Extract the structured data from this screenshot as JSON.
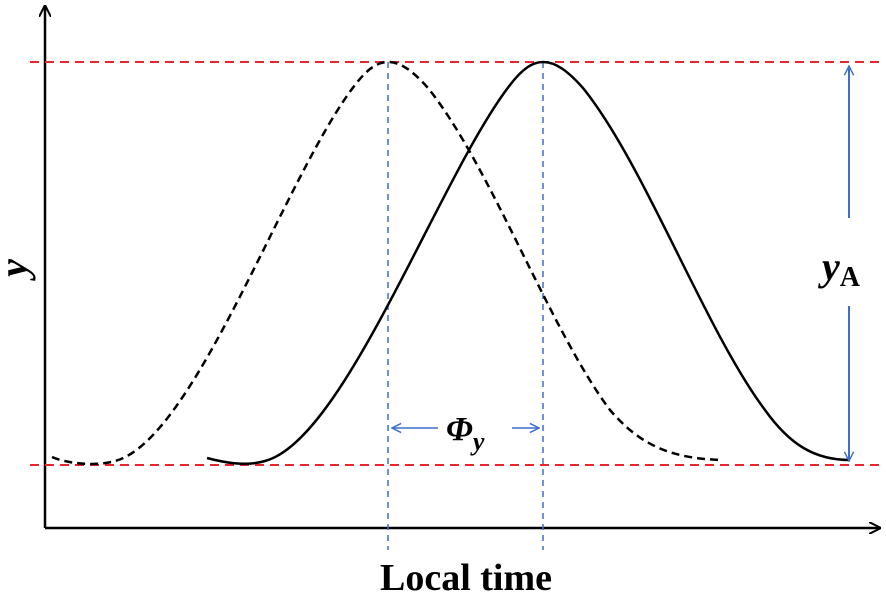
{
  "labels": {
    "x_axis": "Local time",
    "y_axis": "y",
    "amplitude_main": "y",
    "amplitude_sub": "A",
    "phase_main": "Φ",
    "phase_sub": "y"
  },
  "colors": {
    "axis": "#000000",
    "curves": "#000000",
    "reference_lines": "#e8262b",
    "markers": "#3f6fc9"
  }
}
